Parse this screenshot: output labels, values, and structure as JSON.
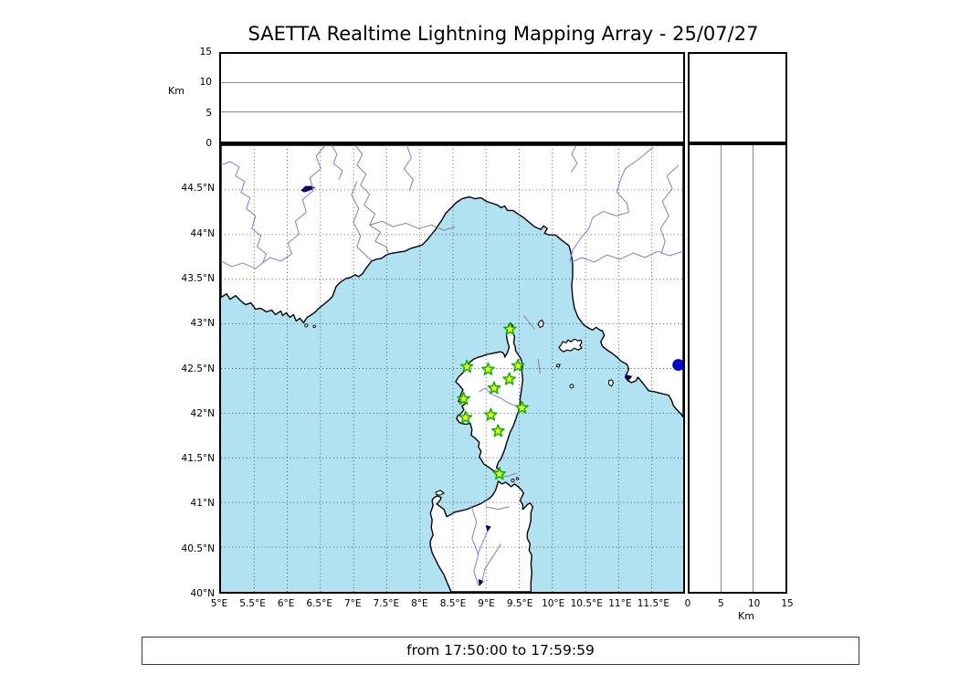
{
  "title": "SAETTA Realtime Lightning Mapping Array - 25/07/27",
  "time_range": "from 17:50:00 to 17:59:59",
  "chart_data": {
    "type": "scatter",
    "title": "SAETTA Realtime Lightning Mapping Array - 25/07/27",
    "subtitle_time_window": "from 17:50:00 to 17:59:59",
    "layout": "map with altitude cross-section panels (top: altitude vs longitude, right: altitude vs latitude)",
    "map": {
      "lon_range": [
        5.0,
        11.973
      ],
      "lat_range": [
        40.0,
        45.0
      ],
      "grid": true,
      "lon_ticks": [
        "5°E",
        "5.5°E",
        "6°E",
        "6.5°E",
        "7°E",
        "7.5°E",
        "8°E",
        "8.5°E",
        "9°E",
        "9.5°E",
        "10°E",
        "10.5°E",
        "11°E",
        "11.5°E"
      ],
      "lat_ticks": [
        "44.5°N",
        "44°N",
        "43.5°N",
        "43°N",
        "42.5°N",
        "42°N",
        "41.5°N",
        "41°N",
        "40.5°N",
        "40°N"
      ]
    },
    "altitude_axis": {
      "label": "Km",
      "range": [
        0,
        15
      ],
      "ticks": [
        0,
        5,
        10,
        15
      ],
      "gridlines_km": [
        5,
        10
      ]
    },
    "stations": [
      {
        "lon": 9.36,
        "lat": 42.94
      },
      {
        "lon": 8.71,
        "lat": 42.52
      },
      {
        "lon": 9.03,
        "lat": 42.49
      },
      {
        "lon": 9.48,
        "lat": 42.53
      },
      {
        "lon": 9.35,
        "lat": 42.38
      },
      {
        "lon": 9.12,
        "lat": 42.28
      },
      {
        "lon": 8.66,
        "lat": 42.16
      },
      {
        "lon": 9.54,
        "lat": 42.06
      },
      {
        "lon": 8.69,
        "lat": 41.95
      },
      {
        "lon": 9.07,
        "lat": 41.98
      },
      {
        "lon": 9.18,
        "lat": 41.8
      },
      {
        "lon": 9.2,
        "lat": 41.32
      }
    ],
    "event_sources": [
      {
        "lon": 11.9,
        "lat": 42.54,
        "color": "#0000cc"
      }
    ],
    "colors": {
      "sea": "#b0e2f2",
      "land": "#ffffff",
      "coastline": "#000000",
      "river": "#7b7bf5",
      "national_border": "#7a7a7a",
      "grid": "#4d4d4d",
      "lake": "#000066",
      "station_fill": "#ffff00",
      "station_edge": "#00b400",
      "event_dot": "#0000cc"
    }
  }
}
